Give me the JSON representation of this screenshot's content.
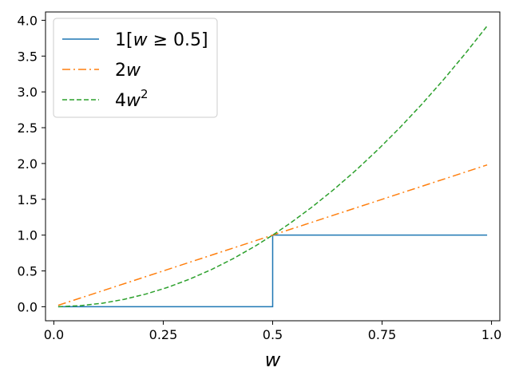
{
  "chart_data": {
    "type": "line",
    "title": "",
    "xlabel": "w",
    "ylabel": "",
    "xlim": [
      -0.019,
      1.019
    ],
    "ylim": [
      -0.196,
      4.116
    ],
    "xticks": [
      0.0,
      0.25,
      0.5,
      0.75,
      1.0
    ],
    "xtick_labels": [
      "0.0",
      "0.25",
      "0.5",
      "0.75",
      "1.0"
    ],
    "yticks": [
      0.0,
      0.5,
      1.0,
      1.5,
      2.0,
      2.5,
      3.0,
      3.5,
      4.0
    ],
    "ytick_labels": [
      "0.0",
      "0.5",
      "1.0",
      "1.5",
      "2.0",
      "2.5",
      "3.0",
      "3.5",
      "4.0"
    ],
    "grid": false,
    "legend_position": "top-left",
    "series": [
      {
        "name": "1[w ≥ 0.5]",
        "legend_parts": [
          "1[",
          "w",
          " ≥ 0.5]"
        ],
        "color": "#1f77b4",
        "dash": "",
        "x": [
          0.01,
          0.5,
          0.5,
          0.99
        ],
        "y": [
          0.0,
          0.0,
          1.0,
          1.0
        ]
      },
      {
        "name": "2w",
        "legend_parts": [
          "2",
          "w",
          ""
        ],
        "color": "#ff7f0e",
        "dash": "10,4,2,4",
        "x": [
          0.01,
          0.99
        ],
        "y": [
          0.02,
          1.98
        ]
      },
      {
        "name": "4w²",
        "legend_parts": [
          "4",
          "w",
          "2"
        ],
        "color": "#2ca02c",
        "dash": "6,3",
        "x": [
          0.01,
          0.06,
          0.11,
          0.16,
          0.21,
          0.26,
          0.31,
          0.36,
          0.41,
          0.46,
          0.5,
          0.54,
          0.59,
          0.64,
          0.69,
          0.74,
          0.79,
          0.84,
          0.89,
          0.94,
          0.99
        ],
        "y": [
          0.0004,
          0.0144,
          0.0484,
          0.1024,
          0.1764,
          0.2704,
          0.3844,
          0.5184,
          0.6724,
          0.8464,
          1.0,
          1.1664,
          1.3924,
          1.6384,
          1.9044,
          2.1904,
          2.4964,
          2.8224,
          3.1684,
          3.5344,
          3.9204
        ]
      }
    ]
  }
}
